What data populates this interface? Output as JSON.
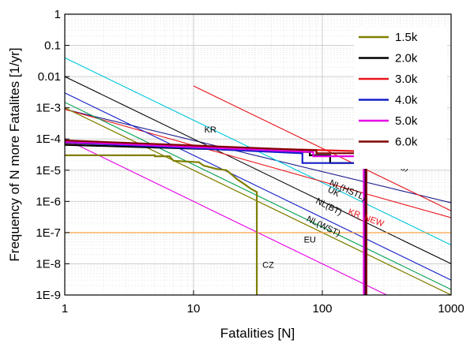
{
  "chart_data": {
    "type": "line",
    "title": "",
    "xlabel": "Fatalities [N]",
    "ylabel": "Frequency of N more Fatalites [1/yr]",
    "xscale": "log",
    "yscale": "log",
    "xlim": [
      1,
      1000
    ],
    "ylim": [
      1e-09,
      1
    ],
    "grid": true,
    "x_ticks": [
      {
        "value": 1,
        "label": "1"
      },
      {
        "value": 10,
        "label": "10"
      },
      {
        "value": 100,
        "label": "100"
      },
      {
        "value": 1000,
        "label": "1000"
      }
    ],
    "y_ticks": [
      {
        "value": 1,
        "label": "1"
      },
      {
        "value": 0.1,
        "label": "0.1"
      },
      {
        "value": 0.01,
        "label": "0.01"
      },
      {
        "value": 0.001,
        "label": "1E-3"
      },
      {
        "value": 0.0001,
        "label": "1E-4"
      },
      {
        "value": 1e-05,
        "label": "1E-5"
      },
      {
        "value": 1e-06,
        "label": "1E-6"
      },
      {
        "value": 1e-07,
        "label": "1E-7"
      },
      {
        "value": 1e-08,
        "label": "1E-8"
      },
      {
        "value": 1e-09,
        "label": "1E-9"
      }
    ],
    "legend_position": "top-right",
    "series": [
      {
        "name": "1.5k",
        "color": "#808000",
        "width": 2.2,
        "step": true,
        "points": [
          [
            1,
            3e-05
          ],
          [
            5,
            3e-05
          ],
          [
            5,
            2.8e-05
          ],
          [
            6.5,
            2.8e-05
          ],
          [
            7,
            2e-05
          ],
          [
            11,
            1.8e-05
          ],
          [
            12,
            1.4e-05
          ],
          [
            15,
            1.1e-05
          ],
          [
            18,
            1e-05
          ],
          [
            20,
            7e-06
          ],
          [
            22,
            5e-06
          ],
          [
            25,
            3.5e-06
          ],
          [
            28,
            2.5e-06
          ],
          [
            31,
            2e-06
          ],
          [
            31,
            1e-09
          ]
        ]
      },
      {
        "name": "2.0k",
        "color": "#000000",
        "width": 2.2,
        "step": true,
        "points": [
          [
            1,
            6.5e-05
          ],
          [
            80,
            3.8e-05
          ],
          [
            80,
            3e-05
          ],
          [
            115,
            3e-05
          ],
          [
            115,
            1.7e-05
          ],
          [
            215,
            1.7e-05
          ],
          [
            215,
            1e-09
          ]
        ]
      },
      {
        "name": "3.0k",
        "color": "#e8141a",
        "width": 2.2,
        "step": true,
        "points": [
          [
            1,
            7.5e-05
          ],
          [
            220,
            4e-05
          ],
          [
            220,
            1e-09
          ]
        ]
      },
      {
        "name": "4.0k",
        "color": "#1520c8",
        "width": 2.2,
        "step": true,
        "points": [
          [
            1,
            7.8e-05
          ],
          [
            70,
            3.5e-05
          ],
          [
            70,
            1.7e-05
          ],
          [
            220,
            1.7e-05
          ],
          [
            220,
            1e-09
          ]
        ]
      },
      {
        "name": "5.0k",
        "color": "#e600e6",
        "width": 2.2,
        "step": true,
        "points": [
          [
            1,
            8.2e-05
          ],
          [
            85,
            3.8e-05
          ],
          [
            85,
            2.8e-05
          ],
          [
            210,
            2.8e-05
          ],
          [
            210,
            1e-09
          ]
        ]
      },
      {
        "name": "6.0k",
        "color": "#800000",
        "width": 2.2,
        "step": true,
        "points": [
          [
            1,
            9e-05
          ],
          [
            90,
            4.3e-05
          ],
          [
            90,
            3.5e-05
          ],
          [
            220,
            3.5e-05
          ],
          [
            220,
            1e-09
          ]
        ]
      }
    ],
    "reference_lines": [
      {
        "label": "KR",
        "color": "#1a1a8c",
        "points": [
          [
            1,
            0.0009
          ],
          [
            1000,
            9e-07
          ]
        ]
      },
      {
        "label": "CH(Lolsberg)",
        "color": "#e8141a",
        "points": [
          [
            10,
            0.005
          ],
          [
            1000,
            5e-07
          ]
        ]
      },
      {
        "label": "NL(HSTL)",
        "color": "#000000",
        "points": [
          [
            1,
            0.01
          ],
          [
            1000,
            1e-08
          ]
        ]
      },
      {
        "label": "",
        "color": "#00c8dc",
        "points": [
          [
            1,
            0.04
          ],
          [
            1000,
            4e-08
          ]
        ]
      },
      {
        "label": "KR_NEW",
        "color": "#e8141a",
        "points": [
          [
            1,
            0.0009
          ],
          [
            1000,
            3e-07
          ]
        ]
      },
      {
        "label": "UK",
        "color": "#1520c8",
        "points": [
          [
            1,
            0.003
          ],
          [
            1000,
            3e-09
          ]
        ]
      },
      {
        "label": "NL(BT)",
        "color": "#00a050",
        "points": [
          [
            1,
            0.0015
          ],
          [
            1000,
            1.5e-09
          ]
        ]
      },
      {
        "label": "NL(WST)",
        "color": "#808000",
        "points": [
          [
            1,
            0.001
          ],
          [
            1000,
            1e-09
          ]
        ]
      },
      {
        "label": "EU",
        "color": "#808000",
        "points": [
          [
            1,
            0.001
          ],
          [
            1000,
            1e-09
          ]
        ]
      },
      {
        "label": "CZ",
        "color": "#e600e6",
        "points": [
          [
            1,
            0.0001
          ],
          [
            1000,
            1e-10
          ]
        ]
      },
      {
        "label": "",
        "color": "#ff9933",
        "points": [
          [
            1,
            1e-07
          ],
          [
            1000,
            1e-07
          ]
        ]
      }
    ]
  }
}
